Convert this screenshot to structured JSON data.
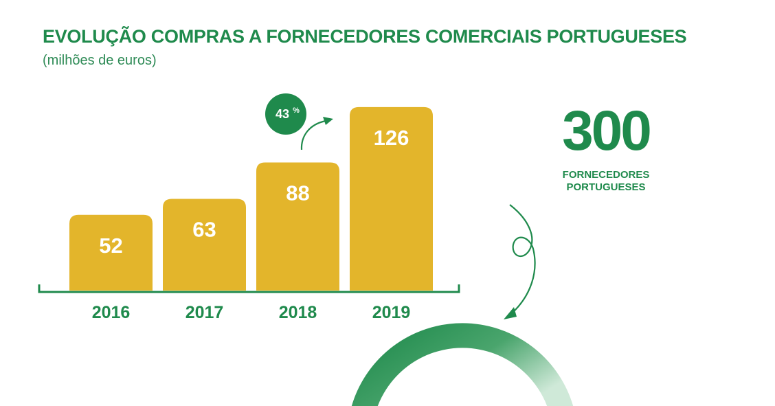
{
  "title": "EVOLUÇÃO COMPRAS A FORNECEDORES COMERCIAIS PORTUGUESES",
  "subtitle": "(milhões de euros)",
  "growth_badge": {
    "value": "43",
    "unit": "%"
  },
  "suppliers": {
    "count": "300",
    "line1": "FORNECEDORES",
    "line2": "PORTUGUESES"
  },
  "colors": {
    "bar": "#e3b52b",
    "green": "#1f8a4c",
    "light_green": "#a8d5b8",
    "white": "#ffffff"
  },
  "chart_data": {
    "type": "bar",
    "title": "EVOLUÇÃO COMPRAS A FORNECEDORES COMERCIAIS PORTUGUESES",
    "subtitle": "(milhões de euros)",
    "categories": [
      "2016",
      "2017",
      "2018",
      "2019"
    ],
    "values": [
      52,
      63,
      88,
      126
    ],
    "data_labels": [
      "52",
      "63",
      "88",
      "126"
    ],
    "xlabel": "",
    "ylabel": "",
    "grid": false,
    "legend": "none",
    "annotation": "43%"
  }
}
